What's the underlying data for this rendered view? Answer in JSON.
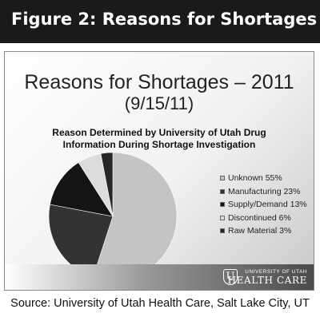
{
  "figure": {
    "header": "Figure 2: Reasons for Shortages"
  },
  "slide": {
    "title_line1": "Reasons for Shortages – 2011",
    "title_line2": "(9/15/11)",
    "logo_line1": "UNIVERSITY OF UTAH",
    "logo_line2": "HEALTH CARE",
    "logo_mark": "U"
  },
  "source": "Source: University of Utah Health Care, Salt Lake City, UT",
  "chart_data": {
    "type": "pie",
    "title_line1": "Reason Determined by University of Utah Drug",
    "title_line2": "Information  During Shortage Investigation",
    "slices": [
      {
        "label": "Unknown 55%",
        "value": 55,
        "color": "#c4c4c4"
      },
      {
        "label": "Manufacturing 23%",
        "value": 23,
        "color": "#333333"
      },
      {
        "label": "Supply/Demand 13%",
        "value": 13,
        "color": "#141414"
      },
      {
        "label": "Discontinued 6%",
        "value": 6,
        "color": "#dcdcdc"
      },
      {
        "label": "Raw Material 3%",
        "value": 3,
        "color": "#262626"
      }
    ],
    "legend_position": "right"
  }
}
